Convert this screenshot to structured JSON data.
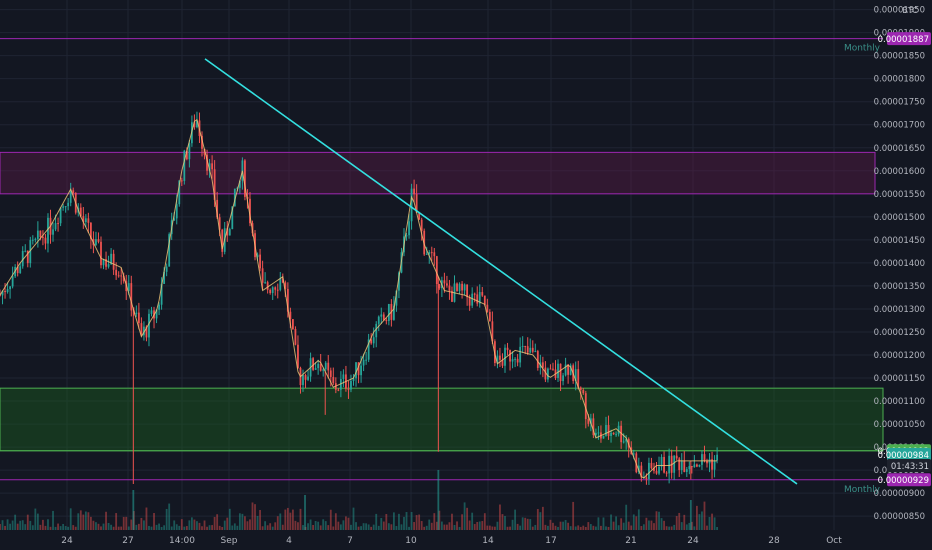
{
  "chart_data": {
    "type": "candlestick",
    "currency_label": "BTC",
    "colors": {
      "background": "#131722",
      "grid": "#1f2433",
      "up": "#26a69a",
      "down": "#ef5350",
      "trendline": "#33e0e0",
      "resistance_box": "#6a1b4d",
      "support_box": "#1b5e20",
      "purple_line": "#9c27b0",
      "green_line": "#4caf50",
      "axis_text": "#b2b5be",
      "ma": "#f5c878"
    },
    "y_axis": {
      "min": 8.2e-06,
      "max": 1.96e-05,
      "ticks": [
        "0.00000850",
        "0.00000900",
        "0.00000950",
        "0.00001000",
        "0.00001050",
        "0.00001100",
        "0.00001150",
        "0.00001200",
        "0.00001250",
        "0.00001300",
        "0.00001350",
        "0.00001400",
        "0.00001450",
        "0.00001500",
        "0.00001550",
        "0.00001600",
        "0.00001650",
        "0.00001700",
        "0.00001750",
        "0.00001800",
        "0.00001850",
        "0.00001900",
        "0.00001950"
      ]
    },
    "x_axis": {
      "ticks": [
        "24",
        "27",
        "14:00",
        "Sep",
        "4",
        "7",
        "10",
        "14",
        "17",
        "21",
        "24",
        "28",
        "Oct"
      ]
    },
    "levels": [
      {
        "name": "Monthly",
        "value": 1.887e-05,
        "label": "0.00001887",
        "style": "purple"
      },
      {
        "name": "Monthly",
        "value": 9.29e-06,
        "label": "0.00000929",
        "style": "purple"
      },
      {
        "name": "",
        "value": 9.92e-06,
        "label": "0.00000992",
        "style": "green"
      }
    ],
    "price_badges": [
      {
        "label": "0.00000984",
        "value": 9.84e-06,
        "style": "green"
      },
      {
        "label": "01:43:31",
        "value": 9.6e-06,
        "style": "dark"
      }
    ],
    "zones": [
      {
        "name": "resistance",
        "low": 1.55e-05,
        "high": 1.64e-05
      },
      {
        "name": "support",
        "low": 9.92e-06,
        "high": 1.128e-05
      }
    ],
    "trendline": {
      "from_day": 8.5,
      "from_price": 1.843e-05,
      "to_day": 37.0,
      "to_price": 9.2e-06
    },
    "candle_trend": [
      [
        0,
        1.33e-05
      ],
      [
        1,
        1.4e-05
      ],
      [
        2.5,
        1.48e-05
      ],
      [
        3.5,
        1.56e-05
      ],
      [
        4,
        1.5e-05
      ],
      [
        5,
        1.41e-05
      ],
      [
        6,
        1.39e-05
      ],
      [
        7,
        1.24e-05
      ],
      [
        7.8,
        1.3e-05
      ],
      [
        9,
        1.6e-05
      ],
      [
        9.7,
        1.72e-05
      ],
      [
        10.5,
        1.58e-05
      ],
      [
        11,
        1.43e-05
      ],
      [
        12,
        1.6e-05
      ],
      [
        13,
        1.34e-05
      ],
      [
        14,
        1.37e-05
      ],
      [
        14.8,
        1.15e-05
      ],
      [
        15.8,
        1.19e-05
      ],
      [
        16.5,
        1.13e-05
      ],
      [
        17.5,
        1.15e-05
      ],
      [
        18.5,
        1.25e-05
      ],
      [
        19.5,
        1.3e-05
      ],
      [
        20.4,
        1.55e-05
      ],
      [
        21,
        1.44e-05
      ],
      [
        22,
        1.34e-05
      ],
      [
        23,
        1.33e-05
      ],
      [
        24,
        1.31e-05
      ],
      [
        24.6,
        1.18e-05
      ],
      [
        25.5,
        1.21e-05
      ],
      [
        26.4,
        1.2e-05
      ],
      [
        27.2,
        1.15e-05
      ],
      [
        28.2,
        1.18e-05
      ],
      [
        28.8,
        1.11e-05
      ],
      [
        29.5,
        1.02e-05
      ],
      [
        30.5,
        1.04e-05
      ],
      [
        31,
        1.02e-05
      ],
      [
        31.8,
        9.3e-06
      ],
      [
        32.5,
        9.6e-06
      ],
      [
        33.2,
        9.6e-06
      ],
      [
        33.5,
        9.7e-06
      ]
    ]
  }
}
